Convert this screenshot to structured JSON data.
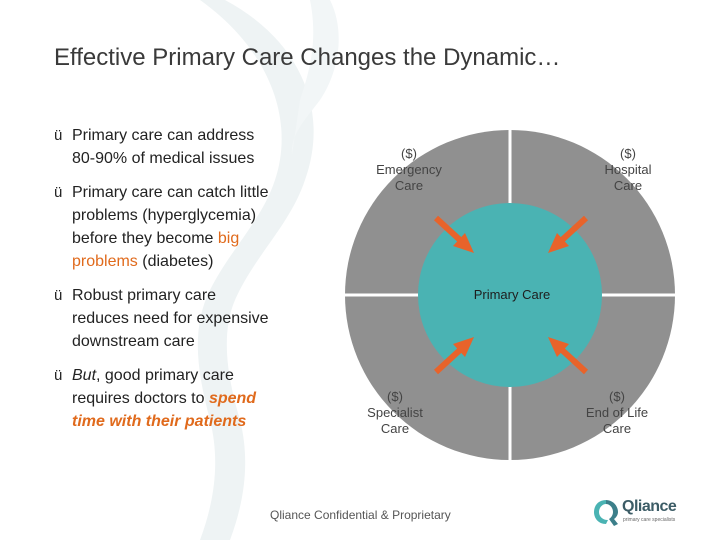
{
  "title": "Effective Primary Care Changes the Dynamic…",
  "check_glyph": "ü",
  "bullets": [
    {
      "text": "Primary care can address 80-90% of medical issues"
    },
    {
      "pre": "Primary care can catch little problems (hyperglycemia) before they become ",
      "highlight": "big problems",
      "post": " (diabetes)"
    },
    {
      "text": "Robust primary care reduces need for expensive downstream care"
    },
    {
      "italic": "But",
      "mid": ", good primary care requires doctors to ",
      "highlight": "spend time with their patients"
    }
  ],
  "diagram": {
    "center_label": "Primary Care",
    "quadrants": [
      {
        "cost": "($)",
        "line1": "Emergency",
        "line2": "Care"
      },
      {
        "cost": "($)",
        "line1": "Hospital",
        "line2": "Care"
      },
      {
        "cost": "($)",
        "line1": "Specialist",
        "line2": "Care"
      },
      {
        "cost": "($)",
        "line1": "End of Life",
        "line2": "Care"
      }
    ],
    "colors": {
      "outer": "#909090",
      "center": "#4ab3b3",
      "arrow": "#e8632a",
      "divider": "#ffffff"
    }
  },
  "footer": "Qliance Confidential & Proprietary",
  "logo": {
    "name": "Qliance",
    "tagline": "primary care specialists",
    "icon": "qliance-logo-icon"
  }
}
